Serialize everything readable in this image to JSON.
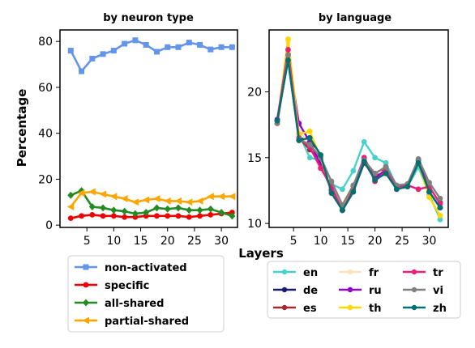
{
  "figure": {
    "xlabel": "Layers",
    "ylabel": "Percentage"
  },
  "chart_data": [
    {
      "type": "line",
      "title": "by neuron type",
      "xlabel": "",
      "ylabel": "Percentage",
      "x": [
        2,
        4,
        6,
        8,
        10,
        12,
        14,
        16,
        18,
        20,
        22,
        24,
        26,
        28,
        30,
        32
      ],
      "xticks": [
        5,
        10,
        15,
        20,
        25,
        30
      ],
      "yticks": [
        0,
        20,
        40,
        60,
        80
      ],
      "xlim": [
        0,
        33
      ],
      "ylim": [
        -1,
        85
      ],
      "legend_position": "below",
      "series": [
        {
          "name": "non-activated",
          "color": "#6495ED",
          "marker": "square",
          "values": [
            76,
            67,
            72.5,
            74.5,
            76,
            79,
            80.5,
            78.5,
            75.5,
            77.5,
            77.5,
            79.5,
            78.5,
            76.5,
            77.5,
            77.5
          ]
        },
        {
          "name": "specific",
          "color": "#EE0000",
          "marker": "circle",
          "values": [
            3,
            4,
            4.5,
            4,
            4,
            3.5,
            3.5,
            4,
            4,
            4,
            4,
            3.5,
            4,
            4.5,
            5,
            5.5
          ]
        },
        {
          "name": "all-shared",
          "color": "#228B22",
          "marker": "diamond",
          "values": [
            13,
            15,
            8,
            7.5,
            6.5,
            6,
            5,
            5.5,
            7.5,
            7,
            7.5,
            6.5,
            6.5,
            7,
            5.5,
            4
          ]
        },
        {
          "name": "partial-shared",
          "color": "#FFA500",
          "marker": "tri-left",
          "values": [
            8,
            14,
            14.5,
            13.5,
            12.5,
            11.5,
            10,
            11,
            11.5,
            10.5,
            10.5,
            10,
            10.5,
            12.5,
            12.5,
            12.5
          ]
        }
      ]
    },
    {
      "type": "line",
      "title": "by language",
      "xlabel": "",
      "ylabel": "",
      "x": [
        2,
        4,
        6,
        8,
        10,
        12,
        14,
        16,
        18,
        20,
        22,
        24,
        26,
        28,
        30,
        32
      ],
      "xticks": [
        5,
        10,
        15,
        20,
        25,
        30
      ],
      "yticks": [
        10,
        15,
        20
      ],
      "xlim": [
        0.5,
        33.5
      ],
      "ylim": [
        9.7,
        24.7
      ],
      "legend_position": "below",
      "legend_columns": 3,
      "series": [
        {
          "name": "en",
          "color": "#48D1CC",
          "values": [
            17.8,
            22.5,
            16.8,
            15.0,
            14.8,
            13.0,
            12.6,
            14.0,
            16.2,
            15.0,
            14.6,
            12.8,
            12.8,
            14.3,
            12.2,
            10.3
          ]
        },
        {
          "name": "de",
          "color": "#191970",
          "values": [
            17.8,
            22.4,
            16.4,
            16.5,
            15.0,
            12.6,
            11.0,
            12.4,
            14.6,
            13.5,
            14.0,
            12.8,
            12.9,
            14.6,
            12.4,
            11.2
          ]
        },
        {
          "name": "es",
          "color": "#A52A2A",
          "values": [
            17.6,
            22.6,
            16.5,
            15.6,
            14.8,
            12.5,
            11.0,
            12.8,
            14.9,
            13.6,
            14.3,
            12.7,
            12.9,
            14.8,
            12.6,
            11.6
          ]
        },
        {
          "name": "fr",
          "color": "#FFE4B5",
          "values": [
            17.8,
            23.8,
            17.0,
            16.0,
            15.2,
            12.8,
            11.3,
            12.6,
            14.8,
            13.8,
            14.0,
            12.8,
            13.0,
            14.7,
            12.5,
            11.4
          ]
        },
        {
          "name": "ru",
          "color": "#9400D3",
          "values": [
            17.9,
            22.9,
            17.6,
            16.2,
            14.5,
            12.5,
            11.1,
            12.8,
            15.0,
            13.4,
            14.1,
            12.6,
            12.8,
            14.8,
            12.4,
            11.2
          ]
        },
        {
          "name": "th",
          "color": "#FFD700",
          "values": [
            17.6,
            24.0,
            16.8,
            17.0,
            15.0,
            12.3,
            11.1,
            12.7,
            14.7,
            13.3,
            13.8,
            12.7,
            12.8,
            14.6,
            12.0,
            10.6
          ]
        },
        {
          "name": "tr",
          "color": "#E8207A",
          "values": [
            17.8,
            23.2,
            16.5,
            15.8,
            14.2,
            12.8,
            11.0,
            12.6,
            15.0,
            13.2,
            14.0,
            12.8,
            12.9,
            12.6,
            12.8,
            11.5
          ]
        },
        {
          "name": "vi",
          "color": "#808080",
          "values": [
            17.6,
            22.8,
            16.4,
            16.0,
            15.0,
            13.2,
            11.4,
            12.9,
            14.8,
            13.8,
            14.3,
            12.9,
            13.0,
            14.9,
            13.1,
            11.9
          ]
        },
        {
          "name": "zh",
          "color": "#007070",
          "values": [
            17.8,
            22.4,
            16.3,
            16.5,
            15.2,
            12.3,
            11.0,
            12.4,
            14.7,
            13.3,
            13.8,
            12.6,
            12.8,
            14.6,
            12.4,
            11.2
          ]
        }
      ]
    }
  ]
}
